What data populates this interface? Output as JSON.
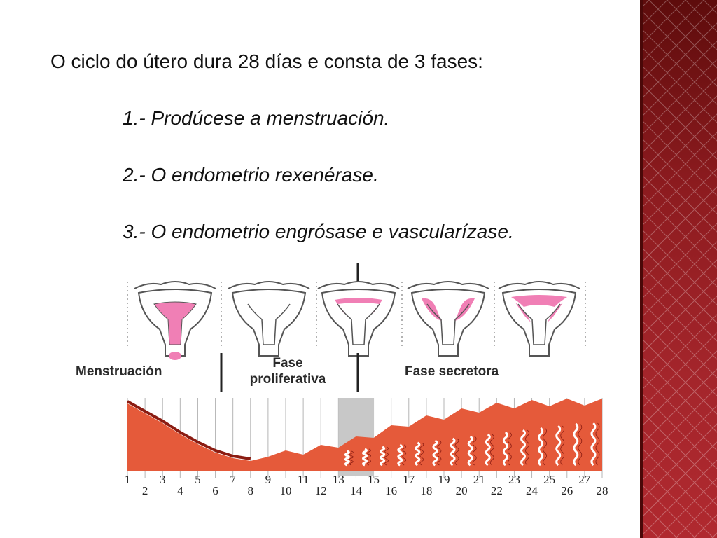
{
  "slide": {
    "heading": "O ciclo do útero dura 28 días e consta de 3 fases:",
    "phases": [
      "1.- Prodúcese a menstruación.",
      "2.- O endometrio rexenérase.",
      "3.- O endometrio engrósase e vascularízase."
    ]
  },
  "diagram": {
    "labels": {
      "menstruation": "Menstruación",
      "proliferative_1": "Fase",
      "proliferative_2": "proliferativa",
      "secretory": "Fase secretora"
    },
    "days": [
      "1",
      "2",
      "3",
      "4",
      "5",
      "6",
      "7",
      "8",
      "9",
      "10",
      "11",
      "12",
      "13",
      "14",
      "15",
      "16",
      "17",
      "18",
      "19",
      "20",
      "21",
      "22",
      "23",
      "24",
      "25",
      "26",
      "27",
      "28"
    ],
    "colors": {
      "endometrium": "#e55a3a",
      "endometrium_dark": "#8b1c12",
      "uterus_fill": "#f07fb5",
      "ovulation_band": "#c8c8c8",
      "sidebar": "#9b2226"
    }
  }
}
